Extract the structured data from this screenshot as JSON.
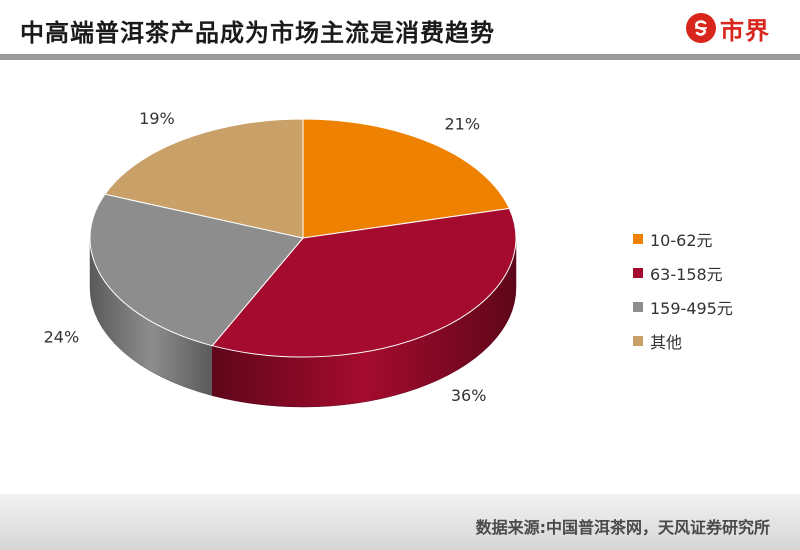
{
  "header": {
    "title": "中高端普洱茶产品成为市场主流是消费趋势",
    "logo_text": "市界",
    "logo_icon": "s-circle-icon"
  },
  "chart_data": {
    "type": "pie",
    "style": "3d",
    "categories": [
      "10-62元",
      "63-158元",
      "159-495元",
      "其他"
    ],
    "values": [
      21,
      36,
      24,
      19
    ],
    "value_labels": [
      "21%",
      "36%",
      "24%",
      "19%"
    ],
    "colors": [
      "#ee8100",
      "#a50b2e",
      "#8d8d8d",
      "#c8a068"
    ],
    "side_colors": [
      "#a85a00",
      "#5e061a",
      "#5a5a5a",
      "#8a6d45"
    ],
    "legend_position": "right",
    "title": ""
  },
  "footer": {
    "source": "数据来源:中国普洱茶网，天风证券研究所"
  }
}
